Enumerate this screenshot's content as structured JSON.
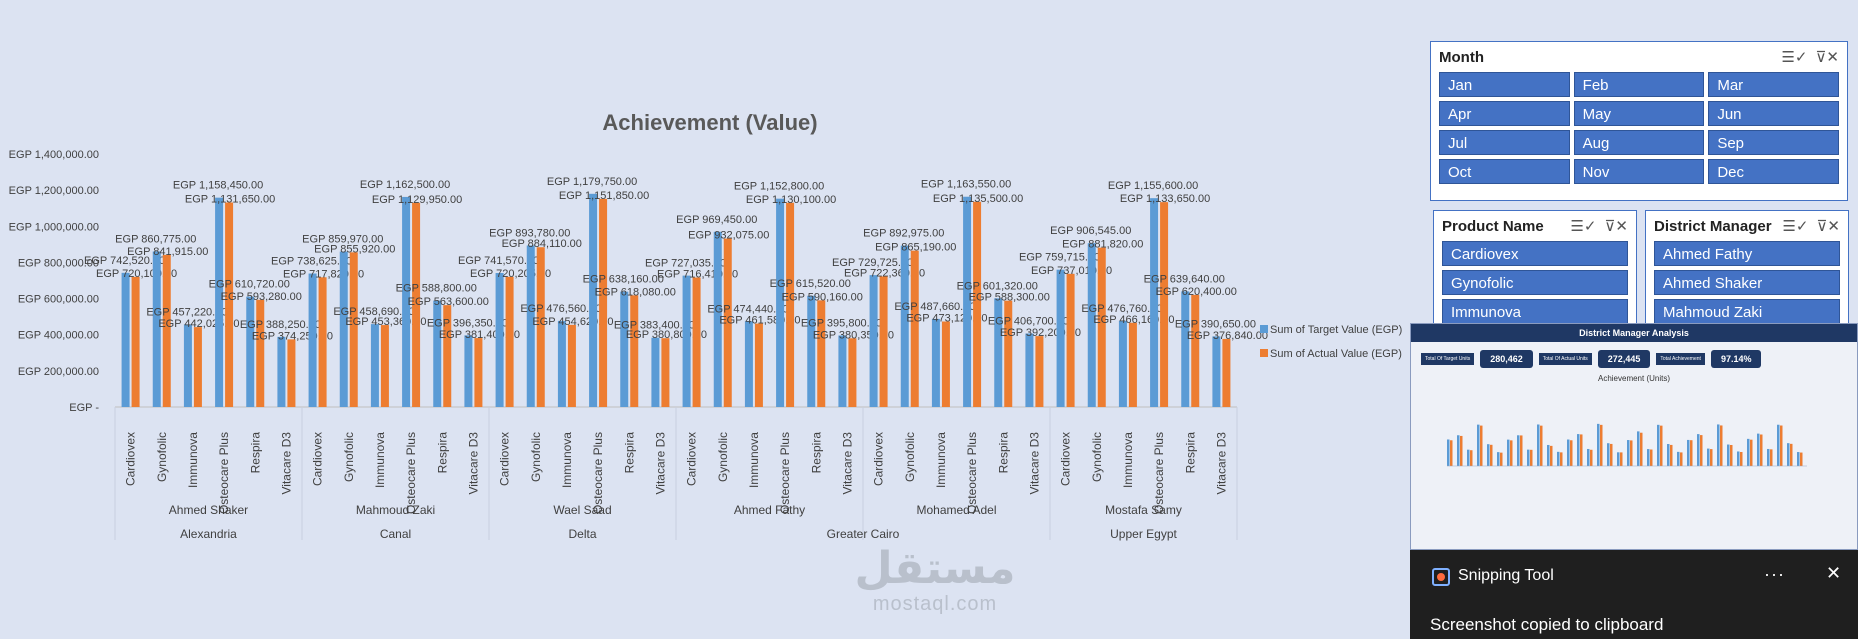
{
  "chart_data": {
    "type": "bar",
    "title": "Achievement (Value)",
    "xlabel": "",
    "ylabel": "",
    "ylim": [
      0,
      1400000
    ],
    "yticks": [
      "EGP -",
      "EGP 200,000.00",
      "EGP 400,000.00",
      "EGP 600,000.00",
      "EGP 800,000.00",
      "EGP 1,000,000.00",
      "EGP 1,200,000.00",
      "EGP 1,400,000.00"
    ],
    "grid": false,
    "legend_position": "right",
    "categories": [
      "Cardiovex",
      "Gynofolic",
      "Immunova",
      "Osteocare Plus",
      "Respira",
      "Vitacare D3",
      "Cardiovex",
      "Gynofolic",
      "Immunova",
      "Osteocare Plus",
      "Respira",
      "Vitacare D3",
      "Cardiovex",
      "Gynofolic",
      "Immunova",
      "Osteocare Plus",
      "Respira",
      "Vitacare D3",
      "Cardiovex",
      "Gynofolic",
      "Immunova",
      "Osteocare Plus",
      "Respira",
      "Vitacare D3",
      "Cardiovex",
      "Gynofolic",
      "Immunova",
      "Osteocare Plus",
      "Respira",
      "Vitacare D3",
      "Cardiovex",
      "Gynofolic",
      "Immunova",
      "Osteocare Plus",
      "Respira",
      "Vitacare D3"
    ],
    "managers": [
      "Ahmed Shaker",
      "Mahmoud Zaki",
      "Wael Saad",
      "Ahmed Fathy",
      "Mohamed Adel",
      "Mostafa Samy"
    ],
    "regions": [
      {
        "name": "Alexandria",
        "managers": 1
      },
      {
        "name": "Canal",
        "managers": 1
      },
      {
        "name": "Delta",
        "managers": 1
      },
      {
        "name": "Greater Cairo",
        "managers": 2
      },
      {
        "name": "Upper Egypt",
        "managers": 1
      }
    ],
    "series": [
      {
        "name": "Sum of Target Value (EGP)",
        "color": "#5b9bd5",
        "values": [
          742520,
          860775,
          457220,
          1158450,
          610720,
          388250,
          738625,
          859970,
          458690,
          1162500,
          588800,
          396350,
          741570,
          893780,
          476560,
          1179750,
          638160,
          383400,
          727035,
          969450,
          474440,
          1152800,
          615520,
          395800,
          729725,
          892975,
          487660,
          1163550,
          601320,
          406700,
          759715,
          906545,
          476760,
          1155600,
          639640,
          390650
        ],
        "labels": [
          "EGP 742,520.00",
          "EGP 860,775.00",
          "EGP 457,220.00",
          "EGP 1,158,450.00",
          "EGP 610,720.00",
          "EGP 388,250.00",
          "EGP 738,625.00",
          "EGP 859,970.00",
          "EGP 458,690.00",
          "EGP 1,162,500.00",
          "EGP 588,800.00",
          "EGP 396,350.00",
          "EGP 741,570.00",
          "EGP 893,780.00",
          "EGP 476,560.00",
          "EGP 1,179,750.00",
          "EGP 638,160.00",
          "EGP 383,400.00",
          "EGP 727,035.00",
          "EGP 969,450.00",
          "EGP 474,440.00",
          "EGP 1,152,800.00",
          "EGP 615,520.00",
          "EGP 395,800.00",
          "EGP 729,725.00",
          "EGP 892,975.00",
          "EGP 487,660.00",
          "EGP 1,163,550.00",
          "EGP 601,320.00",
          "EGP 406,700.00",
          "EGP 759,715.00",
          "EGP 906,545.00",
          "EGP 476,760.00",
          "EGP 1,155,600.00",
          "EGP 639,640.00",
          "EGP 390,650.00"
        ]
      },
      {
        "name": "Sum of Actual Value (EGP)",
        "color": "#ed7d31",
        "values": [
          720100,
          841915,
          442025,
          1131650,
          593280,
          374250,
          717820,
          855920,
          453360,
          1129950,
          563600,
          381400,
          720205,
          884110,
          454620,
          1151850,
          618080,
          380800,
          716410,
          932075,
          461580,
          1130100,
          590160,
          380350,
          722360,
          865190,
          473120,
          1135500,
          588300,
          392200,
          737010,
          881820,
          466160,
          1133650,
          620400,
          376840
        ],
        "labels": [
          "EGP 720,100.00",
          "EGP 841,915.00",
          "EGP 442,025.00",
          "EGP 1,131,650.00",
          "EGP 593,280.00",
          "EGP 374,250.00",
          "EGP 717,820.00",
          "EGP 855,920.00",
          "EGP 453,360.00",
          "EGP 1,129,950.00",
          "EGP 563,600.00",
          "EGP 381,400.00",
          "EGP 720,205.00",
          "EGP 884,110.00",
          "EGP 454,620.00",
          "EGP 1,151,850.00",
          "EGP 618,080.00",
          "EGP 380,800.00",
          "EGP 716,410.00",
          "EGP 932,075.00",
          "EGP 461,580.00",
          "EGP 1,130,100.00",
          "EGP 590,160.00",
          "EGP 380,350.00",
          "EGP 722,360.00",
          "EGP 865,190.00",
          "EGP 473,120.00",
          "EGP 1,135,500.00",
          "EGP 588,300.00",
          "EGP 392,200.00",
          "EGP 737,010.00",
          "EGP 881,820.00",
          "EGP 466,160.00",
          "EGP 1,133,650.00",
          "EGP 620,400.00",
          "EGP 376,840.00"
        ]
      }
    ]
  },
  "slicers": {
    "month": {
      "title": "Month",
      "items": [
        "Jan",
        "Feb",
        "Mar",
        "Apr",
        "May",
        "Jun",
        "Jul",
        "Aug",
        "Sep",
        "Oct",
        "Nov",
        "Dec"
      ]
    },
    "product": {
      "title": "Product Name",
      "items": [
        "Cardiovex",
        "Gynofolic",
        "Immunova"
      ]
    },
    "district_manager": {
      "title": "District Manager",
      "items": [
        "Ahmed Fathy",
        "Ahmed Shaker",
        "Mahmoud Zaki"
      ]
    }
  },
  "snip_preview": {
    "title": "District Manager Analysis",
    "kpis": [
      {
        "label": "Total Of Target Units",
        "value": "280,462"
      },
      {
        "label": "Total Of Actual Units",
        "value": "272,445"
      },
      {
        "label": "Total Achievement",
        "value": "97.14%"
      }
    ],
    "chart_title": "Achievement (Units)"
  },
  "toast": {
    "app_name": "Snipping Tool",
    "message": "Screenshot copied to clipboard",
    "more_glyph": "···",
    "close_glyph": "✕"
  },
  "watermark": {
    "arabic": "مستقل",
    "latin": "mostaql.com"
  },
  "icons": {
    "multi_select": "☰✓",
    "clear_filter": "⊽✕"
  }
}
